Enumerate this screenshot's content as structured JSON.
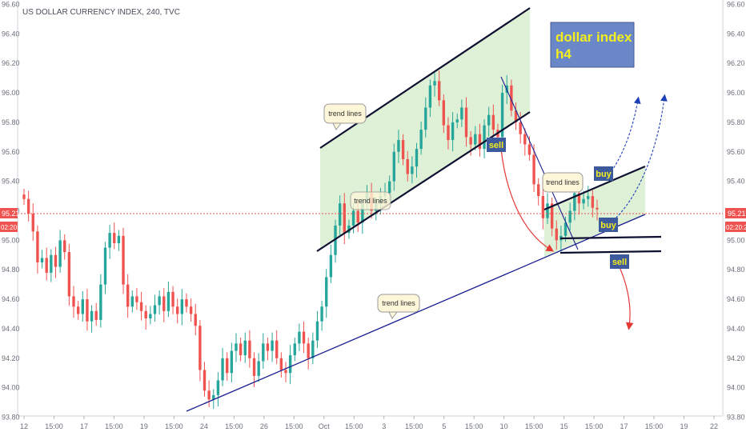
{
  "header": {
    "symbol_title": "US DOLLAR CURRENCY INDEX, 240, TVC"
  },
  "annotation_box": {
    "line1": "dollar index",
    "line2": "h4"
  },
  "price_tag": {
    "value": "95.21",
    "countdown": "02:20:2"
  },
  "chart_data": {
    "type": "candlestick",
    "title": "US DOLLAR CURRENCY INDEX, 240, TVC",
    "ylim": [
      93.8,
      96.6
    ],
    "y_ticks": [
      "93.80",
      "94.00",
      "94.20",
      "94.40",
      "94.60",
      "94.80",
      "95.00",
      "95.20",
      "95.40",
      "95.60",
      "95.80",
      "96.00",
      "96.20",
      "96.40",
      "96.60"
    ],
    "x_ticks": [
      "12",
      "15:00",
      "17",
      "15:00",
      "19",
      "15:00",
      "24",
      "15:00",
      "26",
      "15:00",
      "Oct",
      "15:00",
      "3",
      "15:00",
      "5",
      "15:00",
      "10",
      "15:00",
      "15",
      "15:00",
      "17",
      "15:00",
      "19",
      "22"
    ],
    "current_price": 95.21,
    "colors": {
      "up": "#26a69a",
      "down": "#ef5350",
      "channel_fill": "#d8eecf",
      "trendline": "#1a1f8f",
      "channel_line": "#0d1030",
      "annotation_box": "#6a87c8"
    },
    "closes": [
      95.28,
      95.18,
      95.06,
      94.85,
      94.88,
      94.78,
      94.9,
      94.82,
      95.0,
      94.92,
      94.62,
      94.55,
      94.5,
      94.6,
      94.45,
      94.52,
      94.46,
      94.7,
      94.95,
      95.05,
      94.98,
      95.03,
      94.7,
      94.55,
      94.62,
      94.58,
      94.52,
      94.47,
      94.5,
      94.56,
      94.62,
      94.52,
      94.65,
      94.55,
      94.5,
      94.6,
      94.55,
      94.5,
      94.42,
      94.12,
      93.98,
      93.92,
      93.95,
      94.05,
      94.2,
      94.1,
      94.25,
      94.3,
      94.22,
      94.32,
      94.2,
      94.08,
      94.18,
      94.3,
      94.25,
      94.32,
      94.2,
      94.12,
      94.1,
      94.22,
      94.3,
      94.38,
      94.3,
      94.2,
      94.32,
      94.45,
      94.55,
      94.75,
      94.9,
      95.1,
      95.25,
      95.05,
      95.1,
      95.2,
      95.12,
      95.25,
      95.32,
      95.2,
      95.25,
      95.3,
      95.32,
      95.4,
      95.6,
      95.68,
      95.55,
      95.45,
      95.5,
      95.62,
      95.75,
      95.9,
      96.05,
      96.08,
      95.95,
      95.78,
      95.68,
      95.8,
      95.82,
      95.9,
      95.7,
      95.65,
      95.72,
      95.62,
      95.78,
      95.85,
      95.75,
      95.7,
      96.0,
      96.05,
      95.88,
      95.8,
      95.72,
      95.65,
      95.58,
      95.38,
      95.3,
      95.15,
      95.25,
      95.08,
      95.0,
      95.03,
      95.12,
      95.2,
      95.32,
      95.25,
      95.28,
      95.3,
      95.22,
      95.21
    ],
    "signals": [
      {
        "label": "sell"
      },
      {
        "label": "buy"
      },
      {
        "label": "buy"
      },
      {
        "label": "sell"
      }
    ],
    "callouts": [
      "trend lines",
      "trend lines",
      "trend lines",
      "trend lines"
    ]
  }
}
